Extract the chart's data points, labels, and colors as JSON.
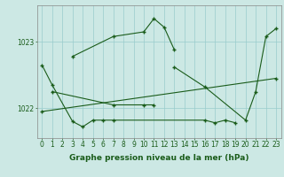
{
  "bg_color": "#cce8e4",
  "grid_color": "#99cccc",
  "line_color": "#1a5c1a",
  "xlabel": "Graphe pression niveau de la mer (hPa)",
  "xlabel_fontsize": 6.5,
  "tick_fontsize": 5.5,
  "yticks": [
    1022,
    1023
  ],
  "xlim": [
    -0.5,
    23.5
  ],
  "ylim": [
    1021.55,
    1023.55
  ],
  "figsize": [
    3.2,
    2.0
  ],
  "dpi": 100,
  "series": [
    {
      "x": [
        0,
        1,
        3,
        4,
        5,
        6,
        7,
        16,
        17,
        18,
        19
      ],
      "y": [
        1022.65,
        1022.35,
        1021.8,
        1021.72,
        1021.82,
        1021.82,
        1021.82,
        1021.82,
        1021.78,
        1021.82,
        1021.78
      ]
    },
    {
      "x": [
        1,
        7,
        10,
        11
      ],
      "y": [
        1022.25,
        1022.05,
        1022.05,
        1022.05
      ]
    },
    {
      "x": [
        3,
        7,
        10,
        11,
        12,
        13
      ],
      "y": [
        1022.78,
        1023.08,
        1023.15,
        1023.35,
        1023.22,
        1022.88
      ]
    },
    {
      "x": [
        13,
        16,
        20,
        21,
        22,
        23
      ],
      "y": [
        1022.62,
        1022.32,
        1021.82,
        1022.25,
        1023.08,
        1023.2
      ]
    },
    {
      "x": [
        0,
        23
      ],
      "y": [
        1021.95,
        1022.45
      ]
    }
  ]
}
